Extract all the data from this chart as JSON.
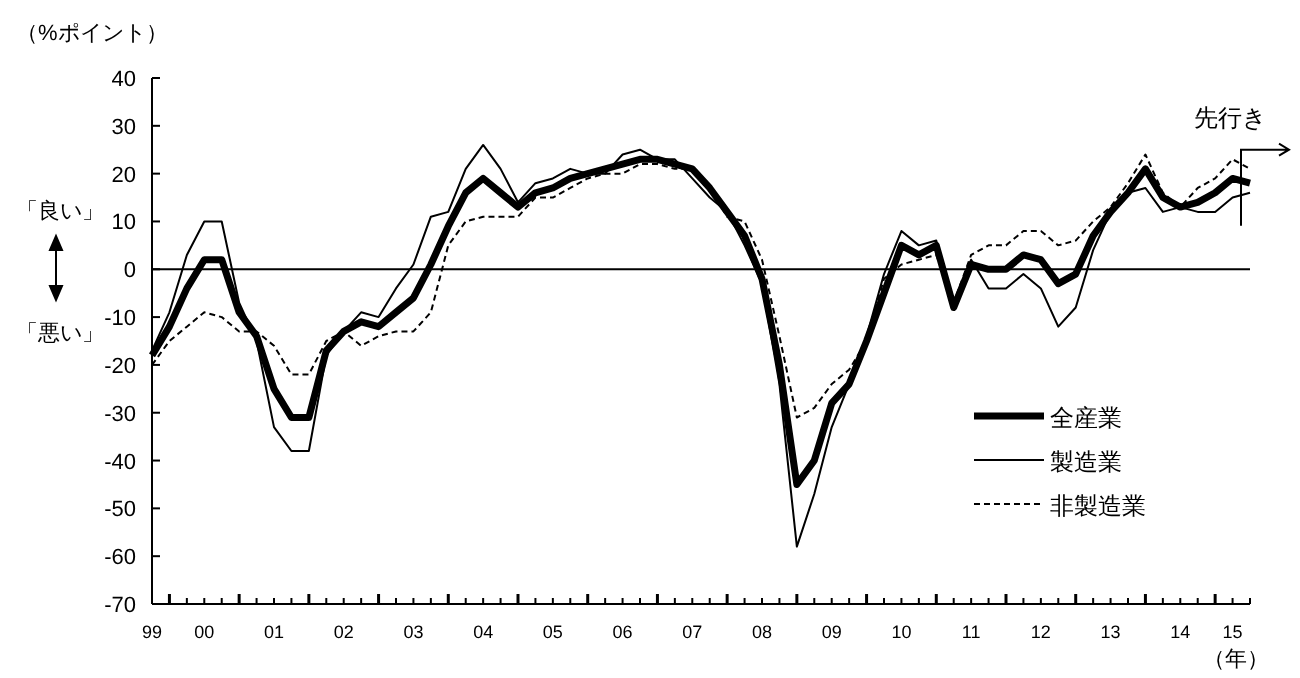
{
  "chart_data": {
    "type": "line",
    "ylabel": "（%ポイント）",
    "annotations": [
      "「良い」",
      "「悪い」",
      "先行き",
      "（年）"
    ],
    "categories": [
      "99",
      null,
      null,
      "00",
      null,
      null,
      null,
      "01",
      null,
      null,
      null,
      "02",
      null,
      null,
      null,
      "03",
      null,
      null,
      null,
      "04",
      null,
      null,
      null,
      "05",
      null,
      null,
      null,
      "06",
      null,
      null,
      null,
      "07",
      null,
      null,
      null,
      "08",
      null,
      null,
      null,
      "09",
      null,
      null,
      null,
      "10",
      null,
      null,
      null,
      "11",
      null,
      null,
      null,
      "12",
      null,
      null,
      null,
      "13",
      null,
      null,
      null,
      "14",
      null,
      null,
      "15",
      null
    ],
    "series": [
      {
        "name": "全産業",
        "color": "#000000",
        "line_style": "solid",
        "values": [
          -18,
          -12,
          -4,
          2,
          2,
          -9,
          -14,
          -25,
          -31,
          -31,
          -17,
          -13,
          -11,
          -12,
          -9,
          -6,
          1,
          9,
          16,
          19,
          16,
          13,
          16,
          17,
          19,
          20,
          21,
          22,
          23,
          23,
          22,
          21,
          17,
          12,
          7,
          -2,
          -20,
          -45,
          -40,
          -28,
          -24,
          -15,
          -5,
          5,
          3,
          5,
          -8,
          1,
          0,
          0,
          3,
          2,
          -3,
          -1,
          7,
          12,
          16,
          21,
          15,
          13,
          14,
          16,
          19,
          18
        ]
      },
      {
        "name": "製造業",
        "color": "#000000",
        "line_style": "solid",
        "values": [
          -17,
          -9,
          3,
          10,
          10,
          -7,
          -15,
          -33,
          -38,
          -38,
          -18,
          -13,
          -9,
          -10,
          -4,
          1,
          11,
          12,
          21,
          26,
          21,
          14,
          18,
          19,
          21,
          20,
          20,
          24,
          25,
          23,
          23,
          19,
          15,
          12,
          5,
          -3,
          -24,
          -58,
          -47,
          -33,
          -24,
          -14,
          -1,
          8,
          5,
          6,
          -8,
          2,
          -4,
          -4,
          -1,
          -4,
          -12,
          -8,
          4,
          12,
          16,
          17,
          12,
          13,
          12,
          12,
          15,
          16
        ]
      },
      {
        "name": "非製造業",
        "color": "#000000",
        "line_style": "dashed",
        "values": [
          -20,
          -15,
          -12,
          -9,
          -10,
          -13,
          -13,
          -16,
          -22,
          -22,
          -15,
          -13,
          -16,
          -14,
          -13,
          -13,
          -9,
          5,
          10,
          11,
          11,
          11,
          15,
          15,
          17,
          19,
          20,
          20,
          22,
          22,
          21,
          21,
          17,
          11,
          10,
          2,
          -14,
          -31,
          -29,
          -24,
          -21,
          -15,
          -2,
          1,
          2,
          3,
          -7,
          3,
          5,
          5,
          8,
          8,
          5,
          6,
          10,
          13,
          18,
          24,
          16,
          13,
          17,
          19,
          23,
          21
        ]
      }
    ],
    "ylim": [
      -70,
      40
    ],
    "yticks": [
      -70,
      -60,
      -50,
      -40,
      -30,
      -20,
      -10,
      0,
      10,
      20,
      30,
      40
    ],
    "ref_lines": [
      {
        "axis": "y",
        "value": 0,
        "label": null
      }
    ],
    "legend": "bottom right",
    "marker": "none"
  }
}
